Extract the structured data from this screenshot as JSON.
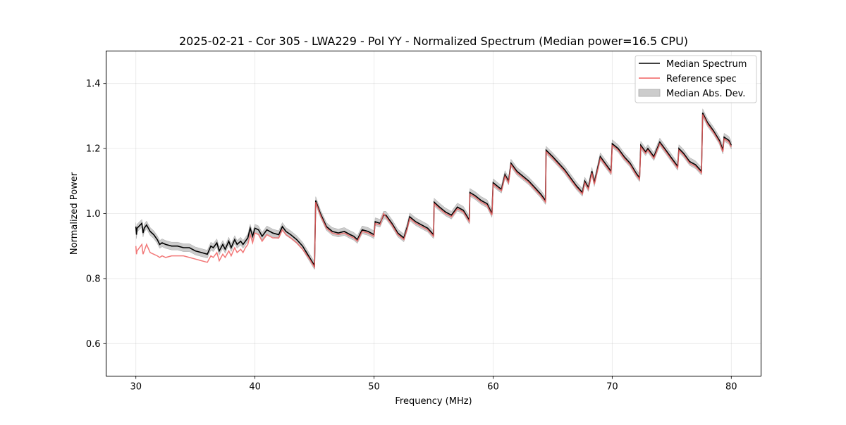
{
  "chart_data": {
    "type": "line",
    "title": "2025-02-21 - Cor 305 - LWA229 - Pol YY - Normalized Spectrum (Median power=16.5 CPU)",
    "xlabel": "Frequency (MHz)",
    "ylabel": "Normalized Power",
    "xlim": [
      27.5,
      82.5
    ],
    "ylim": [
      0.5,
      1.5
    ],
    "xticks": [
      30,
      40,
      50,
      60,
      70,
      80
    ],
    "yticks": [
      0.6,
      0.8,
      1.0,
      1.2,
      1.4
    ],
    "xtick_labels": [
      "30",
      "40",
      "50",
      "60",
      "70",
      "80"
    ],
    "ytick_labels": [
      "0.6",
      "0.8",
      "1.0",
      "1.2",
      "1.4"
    ],
    "grid": true,
    "legend_position": "top-right",
    "legend": [
      "Median Spectrum",
      "Reference spec",
      "Median Abs. Dev."
    ],
    "mad_halfwidth": 0.012,
    "series": [
      {
        "name": "Median Spectrum",
        "color": "#000000",
        "x": [
          30.0,
          30.05,
          30.1,
          30.5,
          30.6,
          30.7,
          30.9,
          31.2,
          31.5,
          31.8,
          32.0,
          32.2,
          32.5,
          33.0,
          33.5,
          34.0,
          34.5,
          35.0,
          35.5,
          36.0,
          36.3,
          36.5,
          36.8,
          37.0,
          37.3,
          37.5,
          37.8,
          38.0,
          38.3,
          38.5,
          38.8,
          39.0,
          39.2,
          39.4,
          39.6,
          39.8,
          40.0,
          40.3,
          40.6,
          41.0,
          41.5,
          42.0,
          42.3,
          42.6,
          43.0,
          43.5,
          44.0,
          44.5,
          45.0,
          45.1,
          45.15,
          45.5,
          46.0,
          46.5,
          47.0,
          47.5,
          48.0,
          48.3,
          48.6,
          49.0,
          49.5,
          50.0,
          50.1,
          50.5,
          50.8,
          51.0,
          51.5,
          52.0,
          52.5,
          52.8,
          53.0,
          53.5,
          54.0,
          54.5,
          55.0,
          55.05,
          55.5,
          56.0,
          56.5,
          57.0,
          57.5,
          58.0,
          58.05,
          58.5,
          59.0,
          59.5,
          59.9,
          60.0,
          60.5,
          60.7,
          61.0,
          61.3,
          61.5,
          62.0,
          62.5,
          63.0,
          63.5,
          64.0,
          64.4,
          64.45,
          65.0,
          65.5,
          66.0,
          66.5,
          67.0,
          67.5,
          67.7,
          68.0,
          68.3,
          68.5,
          69.0,
          69.5,
          69.9,
          70.0,
          70.5,
          71.0,
          71.5,
          72.0,
          72.3,
          72.4,
          72.8,
          73.0,
          73.5,
          74.0,
          74.5,
          75.0,
          75.5,
          75.6,
          76.0,
          76.5,
          77.0,
          77.5,
          77.6,
          78.0,
          78.5,
          79.0,
          79.3,
          79.4,
          79.8,
          80.0
        ],
        "y": [
          0.96,
          0.935,
          0.955,
          0.97,
          0.94,
          0.955,
          0.965,
          0.945,
          0.935,
          0.92,
          0.905,
          0.91,
          0.905,
          0.9,
          0.9,
          0.895,
          0.895,
          0.885,
          0.88,
          0.875,
          0.9,
          0.895,
          0.91,
          0.885,
          0.905,
          0.89,
          0.915,
          0.895,
          0.92,
          0.905,
          0.915,
          0.905,
          0.915,
          0.925,
          0.955,
          0.93,
          0.955,
          0.95,
          0.93,
          0.95,
          0.94,
          0.935,
          0.96,
          0.945,
          0.935,
          0.92,
          0.9,
          0.87,
          0.84,
          1.04,
          1.035,
          1.0,
          0.96,
          0.945,
          0.94,
          0.945,
          0.935,
          0.93,
          0.92,
          0.95,
          0.945,
          0.935,
          0.975,
          0.97,
          0.995,
          0.995,
          0.97,
          0.94,
          0.925,
          0.96,
          0.99,
          0.975,
          0.965,
          0.955,
          0.935,
          1.035,
          1.02,
          1.005,
          0.995,
          1.02,
          1.01,
          0.98,
          1.065,
          1.055,
          1.04,
          1.03,
          1.0,
          1.095,
          1.08,
          1.075,
          1.12,
          1.1,
          1.155,
          1.13,
          1.115,
          1.1,
          1.08,
          1.06,
          1.04,
          1.195,
          1.175,
          1.155,
          1.135,
          1.11,
          1.085,
          1.065,
          1.1,
          1.08,
          1.13,
          1.095,
          1.175,
          1.15,
          1.13,
          1.215,
          1.2,
          1.175,
          1.155,
          1.125,
          1.11,
          1.21,
          1.19,
          1.2,
          1.175,
          1.22,
          1.195,
          1.17,
          1.145,
          1.2,
          1.185,
          1.16,
          1.15,
          1.13,
          1.31,
          1.28,
          1.255,
          1.225,
          1.195,
          1.235,
          1.225,
          1.21
        ]
      },
      {
        "name": "Reference spec",
        "color": "#f06060",
        "x": [
          30.0,
          30.05,
          30.1,
          30.5,
          30.6,
          30.7,
          30.9,
          31.2,
          31.5,
          31.8,
          32.0,
          32.2,
          32.5,
          33.0,
          33.5,
          34.0,
          34.5,
          35.0,
          35.5,
          36.0,
          36.3,
          36.5,
          36.8,
          37.0,
          37.3,
          37.5,
          37.8,
          38.0,
          38.3,
          38.5,
          38.8,
          39.0,
          39.2,
          39.4,
          39.6,
          39.8,
          40.0,
          40.3,
          40.6,
          41.0,
          41.5,
          42.0,
          42.3,
          42.6,
          43.0,
          43.5,
          44.0,
          44.5,
          45.0,
          45.1,
          45.15,
          45.5,
          46.0,
          46.5,
          47.0,
          47.5,
          48.0,
          48.3,
          48.6,
          49.0,
          49.5,
          50.0,
          50.1,
          50.5,
          50.8,
          51.0,
          51.5,
          52.0,
          52.5,
          52.8,
          53.0,
          53.5,
          54.0,
          54.5,
          55.0,
          55.05,
          55.5,
          56.0,
          56.5,
          57.0,
          57.5,
          58.0,
          58.05,
          58.5,
          59.0,
          59.5,
          59.9,
          60.0,
          60.5,
          60.7,
          61.0,
          61.3,
          61.5,
          62.0,
          62.5,
          63.0,
          63.5,
          64.0,
          64.4,
          64.45,
          65.0,
          65.5,
          66.0,
          66.5,
          67.0,
          67.5,
          67.7,
          68.0,
          68.3,
          68.5,
          69.0,
          69.5,
          69.9,
          70.0,
          70.5,
          71.0,
          71.5,
          72.0,
          72.3,
          72.4,
          72.8,
          73.0,
          73.5,
          74.0,
          74.5,
          75.0,
          75.5,
          75.6,
          76.0,
          76.5,
          77.0,
          77.5,
          77.6,
          78.0,
          78.5,
          79.0,
          79.3,
          79.4,
          79.8,
          80.0
        ],
        "y": [
          0.9,
          0.875,
          0.885,
          0.905,
          0.875,
          0.885,
          0.905,
          0.88,
          0.875,
          0.87,
          0.865,
          0.87,
          0.865,
          0.87,
          0.87,
          0.87,
          0.865,
          0.86,
          0.855,
          0.85,
          0.87,
          0.865,
          0.88,
          0.855,
          0.875,
          0.865,
          0.885,
          0.87,
          0.895,
          0.88,
          0.89,
          0.88,
          0.895,
          0.905,
          0.935,
          0.91,
          0.94,
          0.935,
          0.915,
          0.935,
          0.925,
          0.925,
          0.95,
          0.935,
          0.925,
          0.91,
          0.89,
          0.865,
          0.835,
          1.035,
          1.03,
          0.995,
          0.955,
          0.94,
          0.935,
          0.94,
          0.93,
          0.925,
          0.915,
          0.945,
          0.94,
          0.93,
          0.97,
          0.965,
          1.0,
          0.99,
          0.965,
          0.935,
          0.92,
          0.955,
          0.985,
          0.97,
          0.96,
          0.95,
          0.93,
          1.03,
          1.015,
          1.0,
          0.99,
          1.015,
          1.005,
          0.975,
          1.06,
          1.05,
          1.035,
          1.025,
          0.995,
          1.09,
          1.075,
          1.07,
          1.115,
          1.095,
          1.15,
          1.125,
          1.11,
          1.095,
          1.075,
          1.055,
          1.035,
          1.19,
          1.17,
          1.15,
          1.13,
          1.105,
          1.08,
          1.06,
          1.095,
          1.075,
          1.125,
          1.09,
          1.17,
          1.145,
          1.125,
          1.21,
          1.195,
          1.17,
          1.15,
          1.12,
          1.105,
          1.205,
          1.185,
          1.195,
          1.17,
          1.215,
          1.19,
          1.165,
          1.14,
          1.195,
          1.18,
          1.155,
          1.145,
          1.125,
          1.305,
          1.275,
          1.25,
          1.22,
          1.19,
          1.23,
          1.22,
          1.205
        ]
      }
    ]
  }
}
